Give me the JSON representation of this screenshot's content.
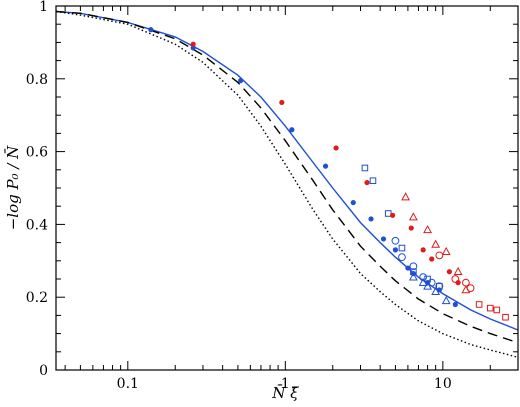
{
  "chart_data": {
    "type": "scatter",
    "xlabel": "N̄ ξ̄",
    "ylabel": "−log P₀ / N̄",
    "xscale": "log",
    "xlim": [
      0.035,
      30
    ],
    "ylim": [
      0,
      1
    ],
    "x_ticks": [
      {
        "value": 0.1,
        "label": "0.1"
      },
      {
        "value": 1,
        "label": "1"
      },
      {
        "value": 10,
        "label": "10"
      }
    ],
    "y_ticks": [
      {
        "value": 0,
        "label": "0"
      },
      {
        "value": 0.2,
        "label": "0.2"
      },
      {
        "value": 0.4,
        "label": "0.4"
      },
      {
        "value": 0.6,
        "label": "0.6"
      },
      {
        "value": 0.8,
        "label": "0.8"
      },
      {
        "value": 1,
        "label": "1"
      }
    ],
    "grid": false,
    "curves": [
      {
        "style": "solid",
        "color": "#1f4fd6",
        "x": [
          0.035,
          0.05,
          0.1,
          0.2,
          0.3,
          0.5,
          0.7,
          1,
          1.5,
          2,
          3,
          4,
          5,
          7,
          10,
          15,
          20,
          30
        ],
        "y": [
          0.985,
          0.98,
          0.955,
          0.915,
          0.875,
          0.81,
          0.75,
          0.67,
          0.57,
          0.5,
          0.405,
          0.35,
          0.31,
          0.255,
          0.21,
          0.165,
          0.14,
          0.11
        ]
      },
      {
        "style": "dashed",
        "color": "#000000",
        "x": [
          0.035,
          0.05,
          0.1,
          0.2,
          0.3,
          0.5,
          0.7,
          1,
          1.5,
          2,
          3,
          4,
          5,
          7,
          10,
          15,
          20,
          30
        ],
        "y": [
          0.985,
          0.98,
          0.955,
          0.91,
          0.865,
          0.79,
          0.72,
          0.63,
          0.52,
          0.44,
          0.34,
          0.285,
          0.245,
          0.195,
          0.155,
          0.12,
          0.1,
          0.075
        ]
      },
      {
        "style": "dotted",
        "color": "#000000",
        "x": [
          0.035,
          0.05,
          0.1,
          0.2,
          0.3,
          0.5,
          0.7,
          1,
          1.5,
          2,
          3,
          4,
          5,
          7,
          10,
          15,
          20,
          30
        ],
        "y": [
          0.985,
          0.975,
          0.95,
          0.895,
          0.845,
          0.755,
          0.67,
          0.565,
          0.44,
          0.36,
          0.265,
          0.215,
          0.18,
          0.135,
          0.1,
          0.07,
          0.055,
          0.035
        ]
      }
    ],
    "series": [
      {
        "color": "#1f4fd6",
        "marker": "filled-circle",
        "points": [
          [
            0.14,
            0.935
          ],
          [
            0.26,
            0.885
          ],
          [
            0.52,
            0.795
          ],
          [
            1.1,
            0.66
          ],
          [
            1.8,
            0.56
          ],
          [
            2.7,
            0.46
          ],
          [
            3.5,
            0.415
          ],
          [
            4.2,
            0.36
          ],
          [
            5.0,
            0.33
          ],
          [
            6.0,
            0.28
          ],
          [
            6.5,
            0.265
          ],
          [
            8.0,
            0.24
          ],
          [
            9.5,
            0.22
          ],
          [
            12,
            0.18
          ]
        ]
      },
      {
        "color": "#1f4fd6",
        "marker": "open-circle",
        "points": [
          [
            5.0,
            0.355
          ],
          [
            5.5,
            0.31
          ],
          [
            6.5,
            0.285
          ],
          [
            7.5,
            0.255
          ],
          [
            8.5,
            0.24
          ],
          [
            9.5,
            0.23
          ]
        ]
      },
      {
        "color": "#1f4fd6",
        "marker": "open-square",
        "points": [
          [
            3.2,
            0.555
          ],
          [
            3.6,
            0.52
          ],
          [
            4.5,
            0.43
          ],
          [
            5.5,
            0.335
          ],
          [
            6.5,
            0.27
          ],
          [
            8.0,
            0.25
          ],
          [
            9.5,
            0.23
          ]
        ]
      },
      {
        "color": "#1f4fd6",
        "marker": "open-triangle",
        "points": [
          [
            6.5,
            0.255
          ],
          [
            7.5,
            0.24
          ],
          [
            8.0,
            0.23
          ],
          [
            9.0,
            0.215
          ],
          [
            10.5,
            0.19
          ]
        ]
      },
      {
        "color": "#e01b1b",
        "marker": "filled-circle",
        "points": [
          [
            0.26,
            0.895
          ],
          [
            0.95,
            0.735
          ],
          [
            2.1,
            0.61
          ],
          [
            3.3,
            0.515
          ],
          [
            4.8,
            0.425
          ],
          [
            6.3,
            0.39
          ],
          [
            7.5,
            0.33
          ],
          [
            8.5,
            0.305
          ],
          [
            11,
            0.27
          ],
          [
            12.5,
            0.24
          ]
        ]
      },
      {
        "color": "#e01b1b",
        "marker": "open-triangle",
        "points": [
          [
            5.8,
            0.475
          ],
          [
            6.5,
            0.42
          ],
          [
            8.0,
            0.385
          ],
          [
            9.0,
            0.345
          ],
          [
            10.5,
            0.325
          ],
          [
            12.5,
            0.27
          ],
          [
            14,
            0.22
          ]
        ]
      },
      {
        "color": "#e01b1b",
        "marker": "open-circle",
        "points": [
          [
            9.5,
            0.315
          ],
          [
            12,
            0.25
          ],
          [
            14,
            0.24
          ],
          [
            15,
            0.225
          ]
        ]
      },
      {
        "color": "#e01b1b",
        "marker": "open-square",
        "points": [
          [
            17,
            0.18
          ],
          [
            20,
            0.17
          ],
          [
            22,
            0.165
          ],
          [
            25,
            0.145
          ]
        ]
      }
    ]
  }
}
